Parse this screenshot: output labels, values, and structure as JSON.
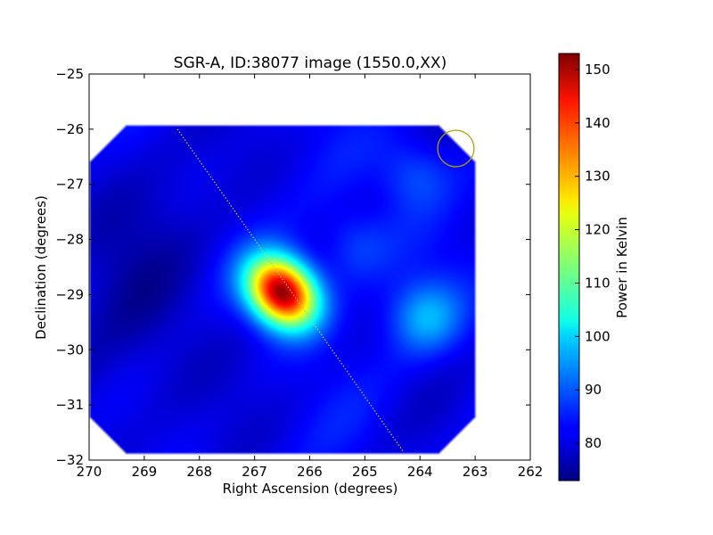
{
  "chart_data": {
    "type": "heatmap",
    "title": "SGR-A, ID:38077 image (1550.0,XX)",
    "xlabel": "Right Ascension (degrees)",
    "ylabel": "Declination (degrees)",
    "xlim": [
      270,
      262
    ],
    "ylim": [
      -32,
      -25
    ],
    "x_ticks": [
      "270",
      "269",
      "268",
      "267",
      "266",
      "265",
      "264",
      "263",
      "262"
    ],
    "y_ticks": [
      "−25",
      "−26",
      "−27",
      "−28",
      "−29",
      "−30",
      "−31",
      "−32"
    ],
    "x_tick_values": [
      270,
      269,
      268,
      267,
      266,
      265,
      264,
      263,
      262
    ],
    "y_tick_values": [
      -25,
      -26,
      -27,
      -28,
      -29,
      -30,
      -31,
      -32
    ],
    "colormap": "jet",
    "colorbar": {
      "label": "Power in Kelvin",
      "range": [
        73,
        153
      ],
      "ticks": [
        "80",
        "90",
        "100",
        "110",
        "120",
        "130",
        "140",
        "150"
      ],
      "tick_values": [
        80,
        90,
        100,
        110,
        120,
        130,
        140,
        150
      ]
    },
    "map_extent": {
      "ra": [
        269.97,
        263.03
      ],
      "dec": [
        -31.85,
        -25.95
      ]
    },
    "sources": [
      {
        "ra": 266.5,
        "dec": -28.95,
        "peak": 153
      },
      {
        "ra": 263.9,
        "dec": -29.4,
        "peak": 96
      },
      {
        "ra": 264.1,
        "dec": -26.8,
        "peak": 90
      },
      {
        "ra": 265.2,
        "dec": -28.1,
        "peak": 89
      }
    ],
    "background_level": 82,
    "dotted_line": {
      "start": {
        "ra": 268.4,
        "dec": -26.0
      },
      "end": {
        "ra": 264.3,
        "dec": -31.85
      },
      "color": "#c8c864"
    },
    "circle_marker": {
      "ra": 263.35,
      "dec": -26.35,
      "radius_deg": 0.33,
      "color": "#b4a100"
    }
  }
}
